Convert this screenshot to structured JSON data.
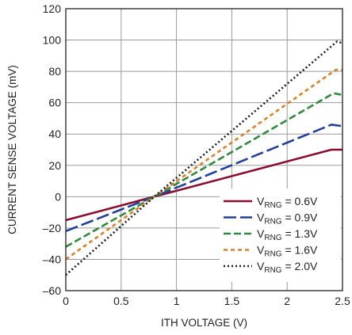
{
  "chart_data": {
    "type": "line",
    "title": "",
    "xlabel": "ITH VOLTAGE (V)",
    "ylabel": "CURRENT SENSE VOLTAGE (mV)",
    "xlim": [
      0,
      2.5
    ],
    "ylim": [
      -60,
      120
    ],
    "xticks": [
      0,
      0.5,
      1,
      1.5,
      2,
      2.5
    ],
    "xtick_labels": [
      "0",
      "0.5",
      "1",
      "1.5",
      "2",
      "2.5"
    ],
    "yticks": [
      -60,
      -40,
      -20,
      0,
      20,
      40,
      60,
      80,
      100,
      120
    ],
    "ytick_labels": [
      "–60",
      "–40",
      "–20",
      "0",
      "20",
      "40",
      "60",
      "80",
      "100",
      "120"
    ],
    "grid": true,
    "legend_position": "bottom-right",
    "series": [
      {
        "name": "V_RNG = 0.6V",
        "legend_main": "V",
        "legend_sub": "RNG",
        "legend_tail": " = 0.6V",
        "color": "#8b0c2e",
        "dash": "solid",
        "x": [
          0,
          0.8,
          2.4,
          2.5
        ],
        "y": [
          -15,
          0,
          30,
          30
        ]
      },
      {
        "name": "V_RNG = 0.9V",
        "legend_main": "V",
        "legend_sub": "RNG",
        "legend_tail": " = 0.9V",
        "color": "#22409a",
        "dash": "long-dash",
        "x": [
          0,
          0.8,
          2.4,
          2.5
        ],
        "y": [
          -22,
          0,
          46,
          45
        ]
      },
      {
        "name": "V_RNG = 1.3V",
        "legend_main": "V",
        "legend_sub": "RNG",
        "legend_tail": " = 1.3V",
        "color": "#2e8b3e",
        "dash": "dash",
        "x": [
          0,
          0.8,
          2.42,
          2.5
        ],
        "y": [
          -32,
          0,
          66,
          65
        ]
      },
      {
        "name": "V_RNG = 1.6V",
        "legend_main": "V",
        "legend_sub": "RNG",
        "legend_tail": " = 1.6V",
        "color": "#d9822b",
        "dash": "short-dash",
        "x": [
          0,
          0.8,
          2.44,
          2.5
        ],
        "y": [
          -40,
          0,
          81,
          81
        ]
      },
      {
        "name": "V_RNG = 2.0V",
        "legend_main": "V",
        "legend_sub": "RNG",
        "legend_tail": " = 2.0V",
        "color": "#231f20",
        "dash": "dotted",
        "x": [
          0,
          0.8,
          2.45,
          2.5
        ],
        "y": [
          -50,
          0,
          99,
          98
        ]
      }
    ]
  }
}
